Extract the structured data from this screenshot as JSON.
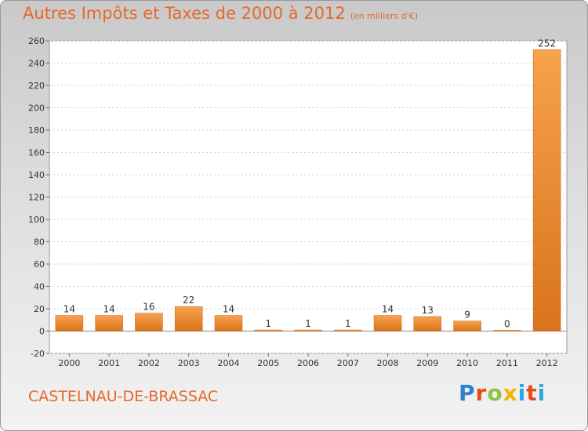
{
  "header": {
    "title": "Autres Impôts et Taxes de 2000 à 2012",
    "subtitle": "(en milliers d'€)"
  },
  "footer": {
    "place": "CASTELNAU-DE-BRASSAC",
    "logo": {
      "p": "P",
      "r": "r",
      "o": "o",
      "x": "x",
      "i": "i",
      "t": "t",
      "i2": "i"
    }
  },
  "colors": {
    "bar_light": "#f7a24e",
    "bar_dark": "#d9741c",
    "title": "#e6682b"
  },
  "chart_data": {
    "type": "bar",
    "title": "Autres Impôts et Taxes de 2000 à 2012",
    "subtitle": "(en milliers d'€)",
    "categories": [
      "2000",
      "2001",
      "2002",
      "2003",
      "2004",
      "2005",
      "2006",
      "2007",
      "2008",
      "2009",
      "2010",
      "2011",
      "2012"
    ],
    "values": [
      14,
      14,
      16,
      22,
      14,
      1,
      1,
      1,
      14,
      13,
      9,
      0,
      252
    ],
    "ylim": [
      -20,
      260
    ],
    "yticks": [
      -20,
      0,
      20,
      40,
      60,
      80,
      100,
      120,
      140,
      160,
      180,
      200,
      220,
      240,
      260
    ],
    "grid": true,
    "legend": "none"
  }
}
